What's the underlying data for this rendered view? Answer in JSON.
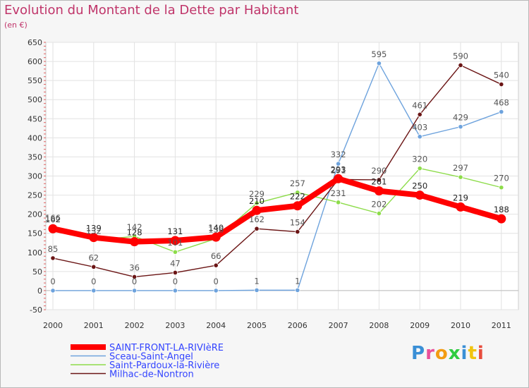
{
  "title": "Evolution du Montant de la Dette par Habitant",
  "subtitle": "(en €)",
  "logo": "Proxiti",
  "chart_data": {
    "type": "line",
    "title": "Evolution du Montant de la Dette par Habitant",
    "unit": "(en €)",
    "x": [
      "2000",
      "2001",
      "2002",
      "2003",
      "2004",
      "2005",
      "2006",
      "2007",
      "2008",
      "2009",
      "2010",
      "2011"
    ],
    "ylim": [
      -50,
      650
    ],
    "yticks": [
      -50,
      0,
      50,
      100,
      150,
      200,
      250,
      300,
      350,
      400,
      450,
      500,
      550,
      600,
      650
    ],
    "grid": true,
    "legend_position": "bottom-left",
    "series": [
      {
        "name": "SAINT-FRONT-LA-RIVIèRE",
        "color": "#ff0000",
        "values": [
          162,
          139,
          128,
          131,
          140,
          210,
          222,
          293,
          261,
          250,
          219,
          188
        ],
        "labels": [
          "162",
          "139",
          "128",
          "131",
          "140",
          "210",
          "222",
          "293",
          "261",
          "250",
          "219",
          "188"
        ]
      },
      {
        "name": "Sceau-Saint-Angel",
        "color": "#6ea3dd",
        "values": [
          0,
          0,
          0,
          0,
          0,
          1,
          1,
          332,
          595,
          403,
          429,
          468
        ],
        "labels": [
          "0",
          "0",
          "0",
          "0",
          "0",
          "1",
          "1",
          "332",
          "595",
          "403",
          "429",
          "468"
        ]
      },
      {
        "name": "Saint-Pardoux-la-Rivière",
        "color": "#8ddc4a",
        "values": [
          166,
          132,
          142,
          101,
          136,
          229,
          257,
          231,
          202,
          320,
          297,
          270
        ],
        "labels": [
          "166",
          "132",
          "142",
          "101",
          "136",
          "229",
          "257",
          "231",
          "202",
          "320",
          "297",
          "270"
        ]
      },
      {
        "name": "Milhac-de-Nontron",
        "color": "#6b1515",
        "values": [
          85,
          62,
          36,
          47,
          66,
          162,
          154,
          291,
          290,
          461,
          590,
          540
        ],
        "labels": [
          "85",
          "62",
          "36",
          "47",
          "66",
          "162",
          "154",
          "291",
          "290",
          "461",
          "590",
          "540"
        ]
      }
    ]
  }
}
